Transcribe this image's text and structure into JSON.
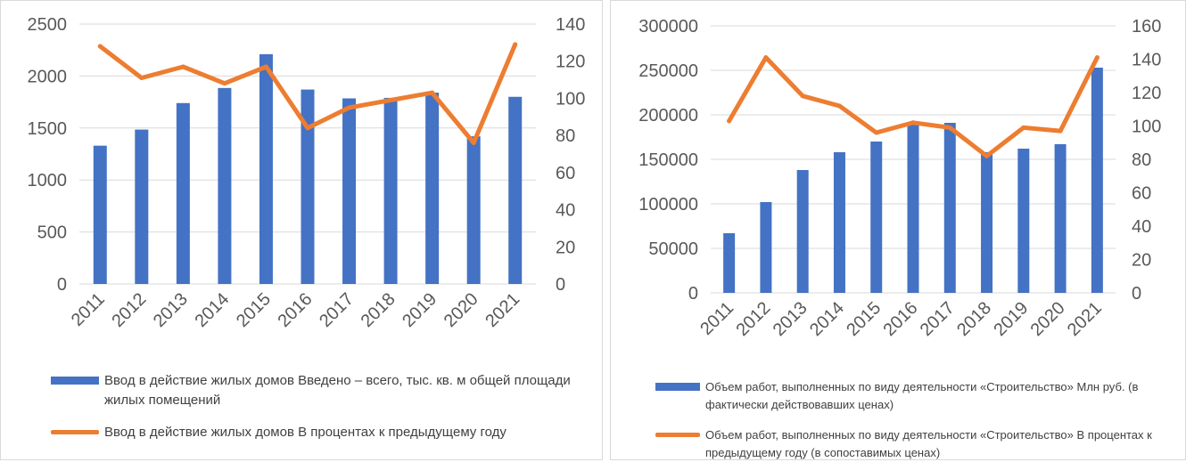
{
  "colors": {
    "bar": "#4472c4",
    "line": "#ed7d31",
    "grid": "#d9d9d9",
    "tick": "#595959"
  },
  "chart_data": [
    {
      "type": "bar+line",
      "categories": [
        "2011",
        "2012",
        "2013",
        "2014",
        "2015",
        "2016",
        "2017",
        "2018",
        "2019",
        "2020",
        "2021"
      ],
      "series": [
        {
          "name": "Ввод в действие жилых домов Введено – всего, тыс. кв. м общей площади жилых помещений",
          "kind": "bar",
          "axis": "left",
          "values": [
            1330,
            1485,
            1740,
            1885,
            2210,
            1870,
            1785,
            1790,
            1840,
            1420,
            1800
          ]
        },
        {
          "name": "Ввод в действие жилых домов В процентах к предыдущему году",
          "kind": "line",
          "axis": "right",
          "values": [
            128,
            111,
            117,
            108,
            117,
            84,
            95,
            99,
            103,
            76,
            129
          ]
        }
      ],
      "y_left": {
        "min": 0,
        "max": 2500,
        "ticks": [
          "0",
          "500",
          "1000",
          "1500",
          "2000",
          "2500"
        ]
      },
      "y_right": {
        "min": 0,
        "max": 140,
        "ticks": [
          "0",
          "20",
          "40",
          "60",
          "80",
          "100",
          "120",
          "140"
        ]
      },
      "grid": true,
      "legend": "bottom"
    },
    {
      "type": "bar+line",
      "categories": [
        "2011",
        "2012",
        "2013",
        "2014",
        "2015",
        "2016",
        "2017",
        "2018",
        "2019",
        "2020",
        "2021"
      ],
      "series": [
        {
          "name": "Объем работ, выполненных по виду деятельности «Строительство» Млн руб. (в фактически действовавших ценах)",
          "kind": "bar",
          "axis": "left",
          "values": [
            67000,
            102000,
            138000,
            158000,
            170000,
            190000,
            191000,
            158000,
            162000,
            167000,
            253000
          ]
        },
        {
          "name": "Объем работ, выполненных по виду деятельности «Строительство» В процентах к предыдущему году (в сопоставимых ценах)",
          "kind": "line",
          "axis": "right",
          "values": [
            103,
            141,
            118,
            112,
            96,
            102,
            99,
            82,
            99,
            97,
            141
          ]
        }
      ],
      "y_left": {
        "min": 0,
        "max": 300000,
        "ticks": [
          "0",
          "50000",
          "100000",
          "150000",
          "200000",
          "250000",
          "300000"
        ]
      },
      "y_right": {
        "min": 0,
        "max": 160,
        "ticks": [
          "0",
          "20",
          "40",
          "60",
          "80",
          "100",
          "120",
          "140",
          "160"
        ]
      },
      "grid": true,
      "legend": "bottom"
    }
  ]
}
